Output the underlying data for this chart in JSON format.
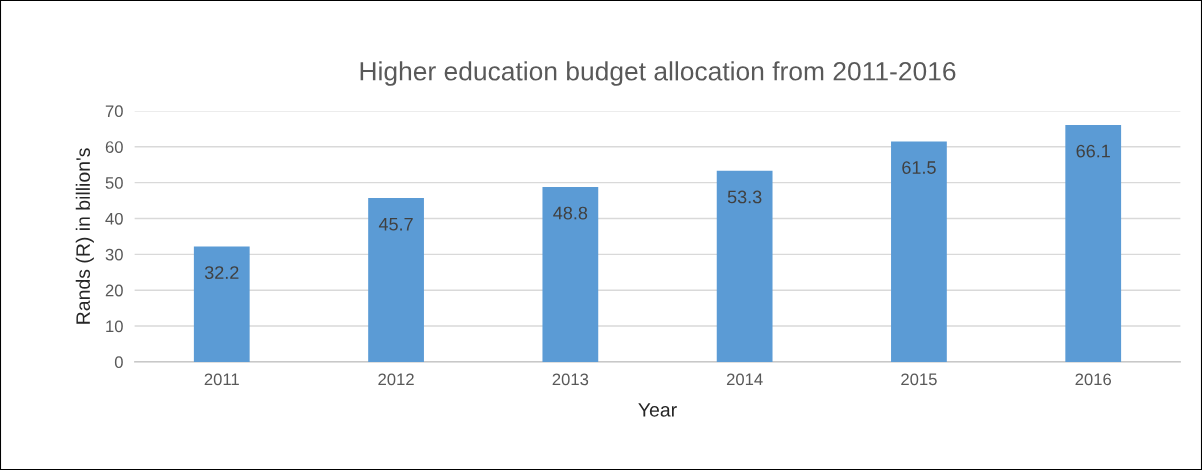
{
  "chart_data": {
    "type": "bar",
    "title": "Higher education budget allocation from 2011-2016",
    "xlabel": "Year",
    "ylabel": "Rands (R) in billion's",
    "categories": [
      "2011",
      "2012",
      "2013",
      "2014",
      "2015",
      "2016"
    ],
    "values": [
      32.2,
      45.7,
      48.8,
      53.3,
      61.5,
      66.1
    ],
    "color": "#5b9bd5",
    "ylim": [
      0,
      70
    ],
    "yticks": [
      0,
      10,
      20,
      30,
      40,
      50,
      60,
      70
    ],
    "grid": "y",
    "data_labels": true
  }
}
